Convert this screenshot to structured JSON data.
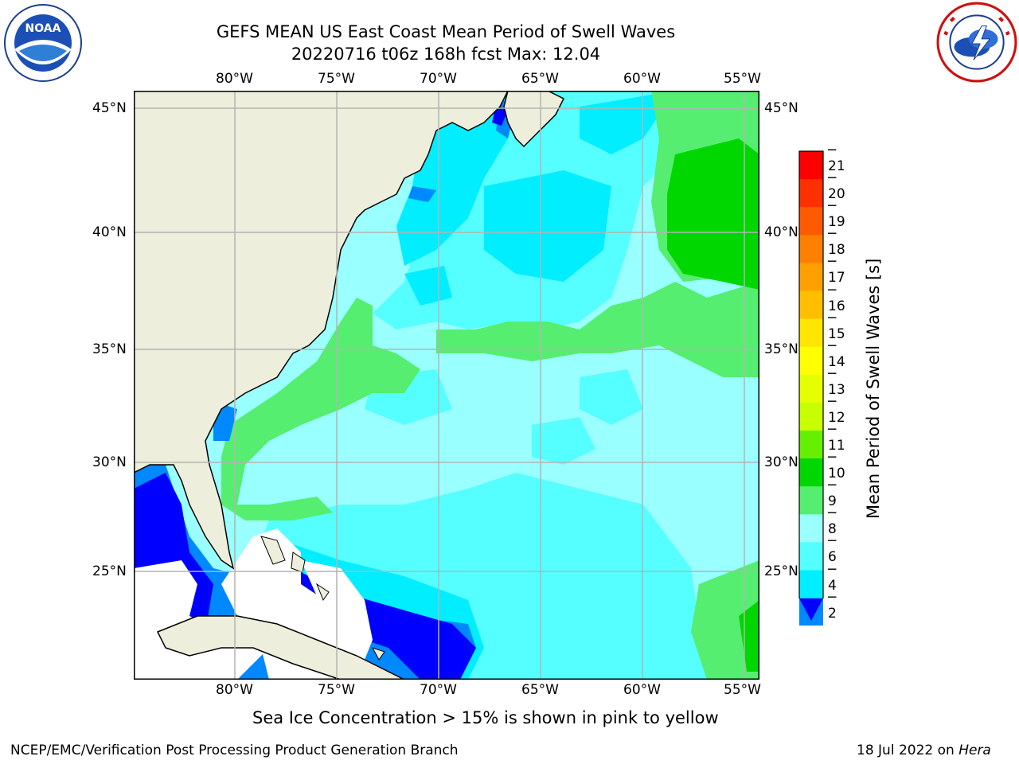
{
  "header": {
    "title_line1": "GEFS MEAN US East Coast Mean Period of Swell Waves",
    "title_line2": "20220716 t06z 168h fcst   Max: 12.04"
  },
  "logos": {
    "left": {
      "name": "NOAA",
      "text": "NOAA",
      "ring_text": "NATIONAL OCEANIC AND ATMOSPHERIC ADMINISTRATION · U.S. DEPARTMENT OF COMMERCE"
    },
    "right": {
      "name": "National Weather Service",
      "ring_text": "NATIONAL WEATHER SERVICE"
    }
  },
  "map": {
    "lon_labels": [
      "80°W",
      "75°W",
      "70°W",
      "65°W",
      "60°W",
      "55°W"
    ],
    "lat_labels": [
      "45°N",
      "40°N",
      "35°N",
      "30°N",
      "25°N"
    ],
    "colors": {
      "land": "#eeeedc",
      "grid": "#b4b4b4",
      "border": "#000000"
    }
  },
  "colorbar": {
    "label": "Mean Period of Swell Waves [s]",
    "ticks": [
      "21",
      "20",
      "19",
      "18",
      "17",
      "16",
      "15",
      "14",
      "13",
      "12",
      "11",
      "10",
      "9",
      "8",
      "6",
      "4",
      "2"
    ],
    "colors": [
      "#ff0000",
      "#ff3000",
      "#ff5a00",
      "#ff7f00",
      "#ff9f00",
      "#ffbf00",
      "#ffe600",
      "#ffff00",
      "#e6ff00",
      "#c8ff00",
      "#64f000",
      "#00d700",
      "#55ee70",
      "#99ffff",
      "#55ffff",
      "#00eeff",
      "#0088ff"
    ],
    "extend_color": "#0000ff"
  },
  "legend_note": "Sea Ice Concentration > 15% is shown in pink to yellow",
  "footer": {
    "left": "NCEP/EMC/Verification Post Processing Product Generation Branch",
    "date": "18 Jul 2022 on ",
    "machine": "Hera"
  }
}
